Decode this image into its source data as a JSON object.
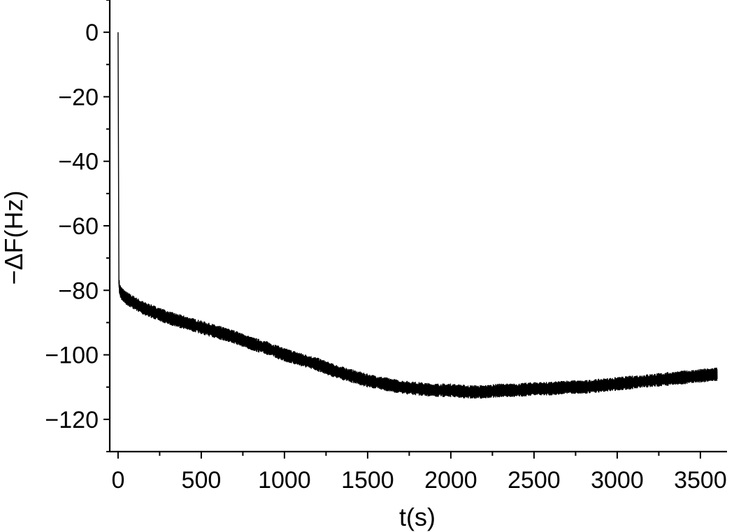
{
  "chart_data": {
    "type": "line",
    "title": "",
    "xlabel": "t(s)",
    "ylabel": "−ΔF(Hz)",
    "xlim": [
      -50,
      3660
    ],
    "ylim": [
      -130,
      10
    ],
    "x_ticks": [
      0,
      500,
      1000,
      1500,
      2000,
      2500,
      3000,
      3500
    ],
    "x_tick_labels": [
      "0",
      "500",
      "1000",
      "1500",
      "2000",
      "2500",
      "3000",
      "3500"
    ],
    "y_ticks": [
      0,
      -20,
      -40,
      -60,
      -80,
      -100,
      -120
    ],
    "y_tick_labels": [
      "0",
      "−20",
      "−40",
      "−60",
      "−80",
      "−100",
      "−120"
    ],
    "grid": false,
    "series": [
      {
        "x": [
          0,
          5,
          10,
          20,
          50,
          100,
          150,
          200,
          300,
          400,
          500,
          600,
          700,
          800,
          900,
          1000,
          1100,
          1200,
          1300,
          1400,
          1500,
          1600,
          1700,
          1800,
          1900,
          2000,
          2100,
          2200,
          2300,
          2400,
          2500,
          2600,
          2700,
          2800,
          2900,
          3000,
          3100,
          3200,
          3300,
          3400,
          3500,
          3600
        ],
        "y": [
          0,
          -78,
          -80,
          -81,
          -82.5,
          -84,
          -85.5,
          -86.5,
          -88.5,
          -90,
          -91.5,
          -93,
          -94.5,
          -96.5,
          -98,
          -100,
          -101.5,
          -103,
          -105,
          -106.5,
          -108,
          -109,
          -110,
          -110.5,
          -111,
          -111,
          -111.5,
          -111.5,
          -111,
          -111,
          -110.5,
          -110.5,
          -110,
          -110,
          -109.5,
          -109,
          -108.5,
          -108,
          -107.5,
          -107,
          -106.5,
          -106
        ]
      }
    ]
  }
}
